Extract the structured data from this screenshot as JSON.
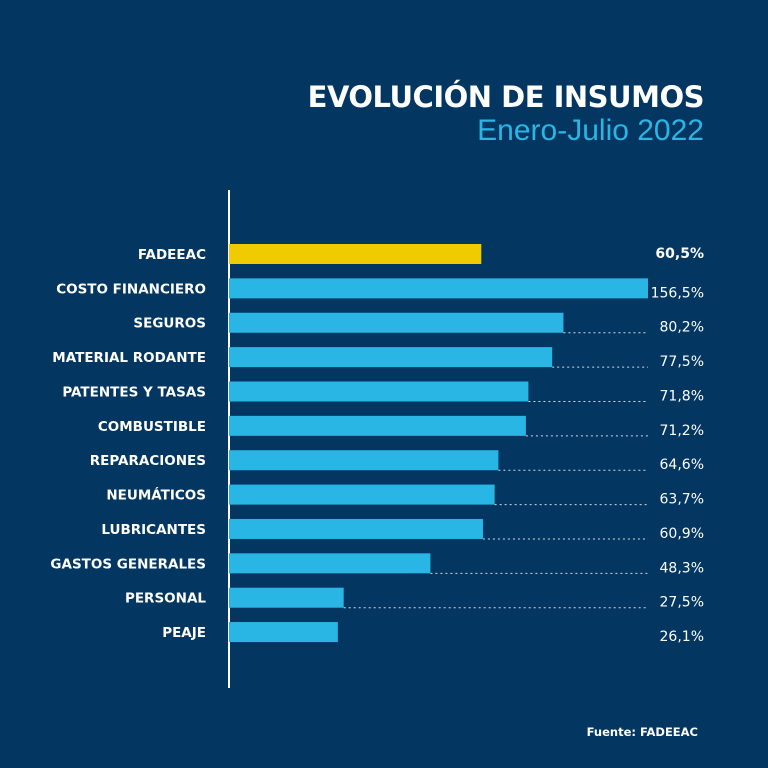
{
  "chart_data": {
    "type": "bar",
    "orientation": "horizontal",
    "title": "EVOLUCIÓN DE INSUMOS",
    "subtitle": "Enero-Julio 2022",
    "categories": [
      "FADEEAC",
      "COSTO FINANCIERO",
      "SEGUROS",
      "MATERIAL RODANTE",
      "PATENTES Y TASAS",
      "COMBUSTIBLE",
      "REPARACIONES",
      "NEUMÁTICOS",
      "LUBRICANTES",
      "GASTOS GENERALES",
      "PERSONAL",
      "PEAJE"
    ],
    "values": [
      60.5,
      156.5,
      80.2,
      77.5,
      71.8,
      71.2,
      64.6,
      63.7,
      60.9,
      48.3,
      27.5,
      26.1
    ],
    "value_labels": [
      "60,5%",
      "156,5%",
      "80,2%",
      "77,5%",
      "71,8%",
      "71,2%",
      "64,6%",
      "63,7%",
      "60,9%",
      "48,3%",
      "27,5%",
      "26,1%"
    ],
    "highlight_category": "FADEEAC",
    "colors": {
      "background": "#033762",
      "bar": "#29b6e5",
      "highlight_bar": "#efcb00",
      "highlight_label": "#29b6e5",
      "text": "#ffffff"
    },
    "grid": false,
    "source": "Fuente: FADEEAC"
  }
}
